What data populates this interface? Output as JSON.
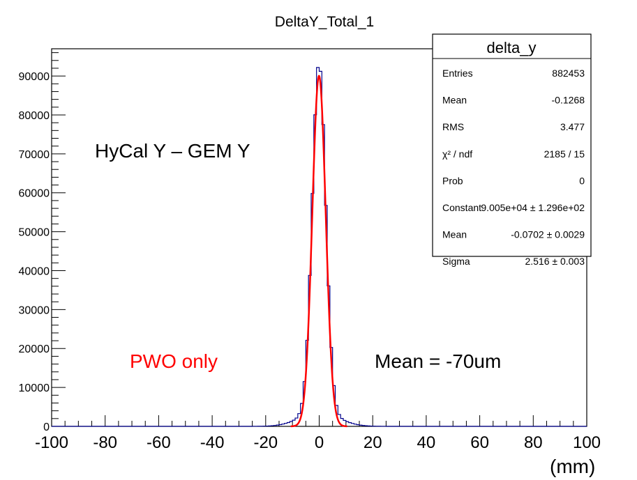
{
  "chart_data": {
    "type": "histogram",
    "title": "DeltaY_Total_1",
    "xlabel_unit": "(mm)",
    "xlim": [
      -100,
      100
    ],
    "ylim": [
      0,
      97000
    ],
    "x_ticks": [
      "-100",
      "-80",
      "-60",
      "-40",
      "-20",
      "0",
      "20",
      "40",
      "60",
      "80",
      "100"
    ],
    "x_tick_values": [
      -100,
      -80,
      -60,
      -40,
      -20,
      0,
      20,
      40,
      60,
      80,
      100
    ],
    "y_ticks": [
      "0",
      "10000",
      "20000",
      "30000",
      "40000",
      "50000",
      "60000",
      "70000",
      "80000",
      "90000"
    ],
    "y_tick_values": [
      0,
      10000,
      20000,
      30000,
      40000,
      50000,
      60000,
      70000,
      80000,
      90000
    ],
    "histogram_color": "#00008b",
    "fit_color": "#ff0000",
    "fit": {
      "function": "gaus",
      "constant": 90050,
      "mean": -0.0702,
      "sigma": 2.516
    },
    "histogram_peak": 93500,
    "tail_fraction": 0.04,
    "tail_sigma": 7.0,
    "bin_width": 1.0,
    "stats": {
      "name": "delta_y",
      "rows": [
        {
          "label": "Entries",
          "value": "882453"
        },
        {
          "label": "Mean",
          "value": "-0.1268"
        },
        {
          "label": "RMS",
          "value": "3.477"
        },
        {
          "label": "χ² / ndf",
          "value": "2185 / 15"
        },
        {
          "label": "Prob",
          "value": "0"
        },
        {
          "label": "Constant",
          "value": "9.005e+04 ± 1.296e+02"
        },
        {
          "label": "Mean",
          "value": "-0.0702 ± 0.0029"
        },
        {
          "label": "Sigma",
          "value": "2.516 ± 0.003"
        }
      ]
    },
    "annotations": [
      {
        "text": "HyCal Y – GEM Y",
        "color": "#000000"
      },
      {
        "text": "PWO  only",
        "color": "#ff0000"
      },
      {
        "text": "Mean = -70um",
        "color": "#000000"
      }
    ]
  }
}
